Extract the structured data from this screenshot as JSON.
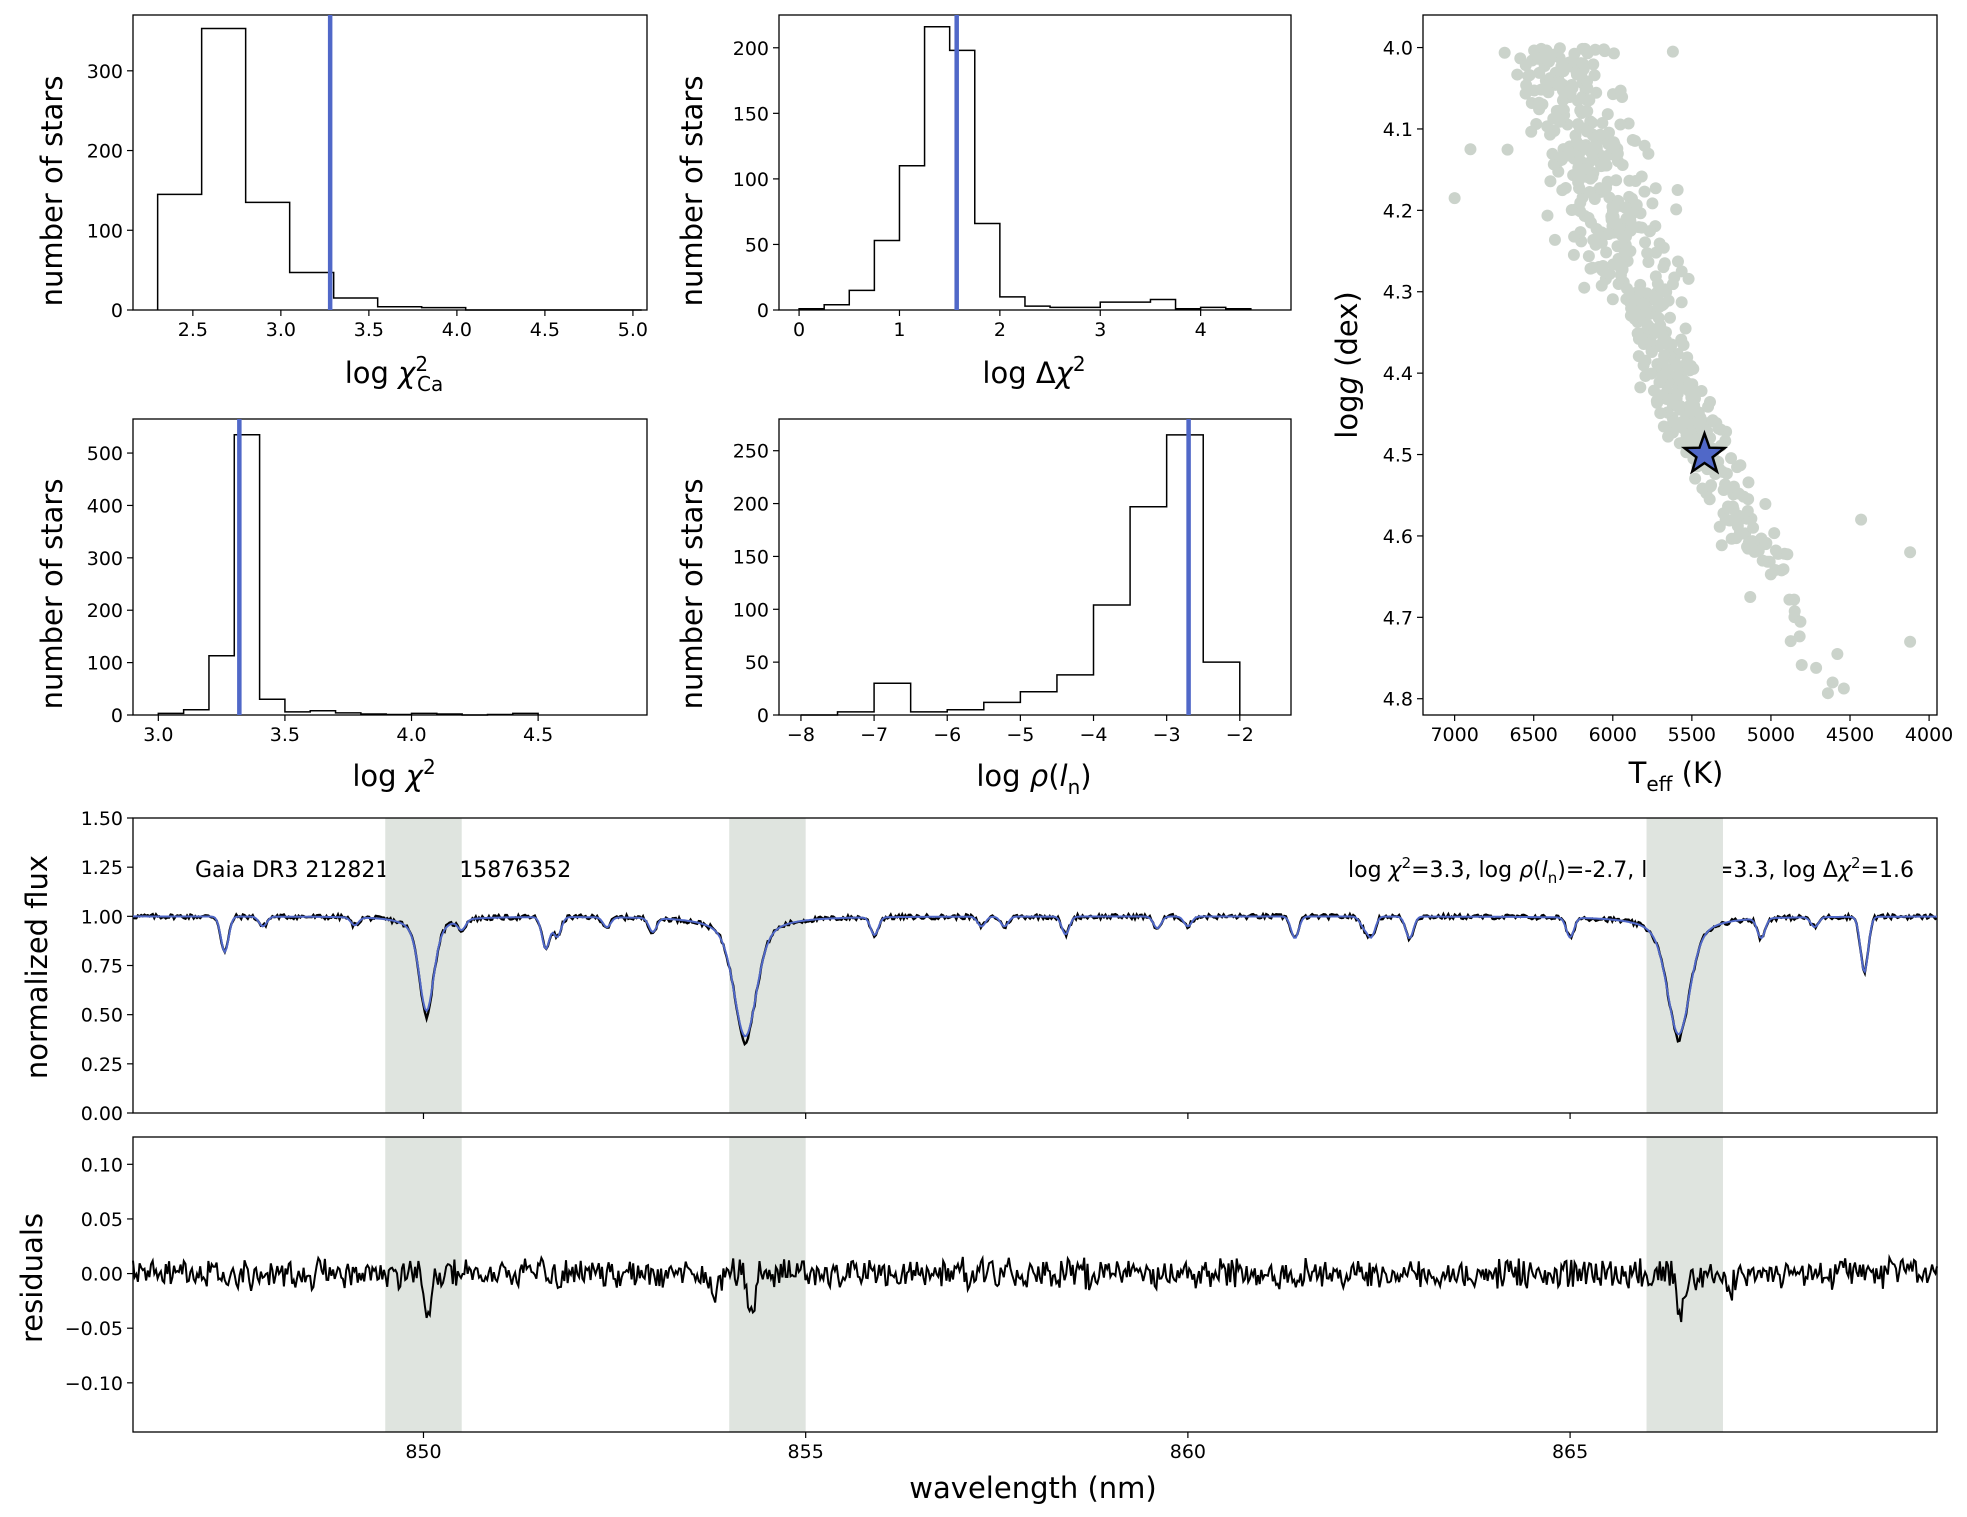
{
  "colors": {
    "accent": "#5068c8",
    "scatter": "#cbd3cb",
    "band": "#dfe4df",
    "hist": "#000000",
    "spectrum": "#000000",
    "model": "#5068c8"
  },
  "chart_data": [
    {
      "id": "hist_chi2ca",
      "type": "histogram",
      "xlabel": "log χ²_Ca",
      "xlabel_main": "log ",
      "xlabel_sym": "χ",
      "xlabel_sup": "2",
      "xlabel_sub": "Ca",
      "ylabel": "number of stars",
      "xlim": [
        2.16,
        5.08
      ],
      "ylim": [
        0,
        370
      ],
      "xticks": [
        2.5,
        3.0,
        3.5,
        4.0,
        4.5,
        5.0
      ],
      "xtick_labels": [
        "2.5",
        "3.0",
        "3.5",
        "4.0",
        "4.5",
        "5.0"
      ],
      "yticks": [
        0,
        100,
        200,
        300
      ],
      "ytick_labels": [
        "0",
        "100",
        "200",
        "300"
      ],
      "bin_edges": [
        2.3,
        2.55,
        2.8,
        3.05,
        3.3,
        3.55,
        3.8,
        4.05,
        4.3,
        4.55,
        4.8,
        5.05
      ],
      "counts": [
        145,
        353,
        135,
        47,
        15,
        4,
        3,
        0,
        0,
        0,
        0
      ],
      "marker_value": 3.28
    },
    {
      "id": "hist_dchi2",
      "type": "histogram",
      "xlabel": "log Δχ²",
      "xlabel_main": "log Δ",
      "xlabel_sym": "χ",
      "xlabel_sup": "2",
      "xlabel_sub": "",
      "ylabel": "number of stars",
      "xlim": [
        -0.2,
        4.9
      ],
      "ylim": [
        0,
        225
      ],
      "xticks": [
        0,
        1,
        2,
        3,
        4
      ],
      "xtick_labels": [
        "0",
        "1",
        "2",
        "3",
        "4"
      ],
      "yticks": [
        0,
        50,
        100,
        150,
        200
      ],
      "ytick_labels": [
        "0",
        "50",
        "100",
        "150",
        "200"
      ],
      "bin_edges": [
        0,
        0.25,
        0.5,
        0.75,
        1.0,
        1.25,
        1.5,
        1.75,
        2.0,
        2.25,
        2.5,
        2.75,
        3.0,
        3.25,
        3.5,
        3.75,
        4.0,
        4.25,
        4.5
      ],
      "counts": [
        1,
        4,
        15,
        53,
        110,
        216,
        198,
        66,
        10,
        3,
        2,
        2,
        6,
        6,
        8,
        1,
        2,
        1
      ],
      "marker_value": 1.57
    },
    {
      "id": "hist_chi2",
      "type": "histogram",
      "xlabel": "log χ²",
      "xlabel_main": "log ",
      "xlabel_sym": "χ",
      "xlabel_sup": "2",
      "xlabel_sub": "",
      "ylabel": "number of stars",
      "xlim": [
        2.9,
        4.93
      ],
      "ylim": [
        0,
        565
      ],
      "xticks": [
        3.0,
        3.5,
        4.0,
        4.5
      ],
      "xtick_labels": [
        "3.0",
        "3.5",
        "4.0",
        "4.5"
      ],
      "yticks": [
        0,
        100,
        200,
        300,
        400,
        500
      ],
      "ytick_labels": [
        "0",
        "100",
        "200",
        "300",
        "400",
        "500"
      ],
      "bin_edges": [
        3.0,
        3.1,
        3.2,
        3.3,
        3.4,
        3.5,
        3.6,
        3.7,
        3.8,
        3.9,
        4.0,
        4.1,
        4.2,
        4.3,
        4.4,
        4.5
      ],
      "counts": [
        3,
        10,
        113,
        535,
        30,
        6,
        8,
        4,
        2,
        1,
        3,
        2,
        0,
        1,
        3
      ],
      "marker_value": 3.32
    },
    {
      "id": "hist_rho",
      "type": "histogram",
      "xlabel": "log ρ(l_n)",
      "xlabel_main": "log ",
      "xlabel_sym": "ρ",
      "xlabel_sup": "",
      "xlabel_sub": "",
      "ylabel": "number of stars",
      "xlim": [
        -8.3,
        -1.3
      ],
      "ylim": [
        0,
        280
      ],
      "xticks": [
        -8,
        -7,
        -6,
        -5,
        -4,
        -3,
        -2
      ],
      "xtick_labels": [
        "−8",
        "−7",
        "−6",
        "−5",
        "−4",
        "−3",
        "−2"
      ],
      "yticks": [
        0,
        50,
        100,
        150,
        200,
        250
      ],
      "ytick_labels": [
        "0",
        "50",
        "100",
        "150",
        "200",
        "250"
      ],
      "bin_edges": [
        -8.0,
        -7.5,
        -7.0,
        -6.5,
        -6.0,
        -5.5,
        -5.0,
        -4.5,
        -4.0,
        -3.5,
        -3.0,
        -2.5,
        -2.0
      ],
      "counts": [
        0,
        3,
        30,
        3,
        5,
        12,
        22,
        38,
        104,
        197,
        265,
        50
      ],
      "marker_value": -2.7
    },
    {
      "id": "kiel",
      "type": "scatter",
      "xlabel": "T_eff (K)",
      "ylabel": "log g (dex)",
      "xlim": [
        7200,
        3950
      ],
      "ylim": [
        4.82,
        3.96
      ],
      "xticks": [
        7000,
        6500,
        6000,
        5500,
        5000,
        4500,
        4000
      ],
      "xtick_labels": [
        "7000",
        "6500",
        "6000",
        "5500",
        "5000",
        "4500",
        "4000"
      ],
      "yticks": [
        4.0,
        4.1,
        4.2,
        4.3,
        4.4,
        4.5,
        4.6,
        4.7,
        4.8
      ],
      "ytick_labels": [
        "4.0",
        "4.1",
        "4.2",
        "4.3",
        "4.4",
        "4.5",
        "4.6",
        "4.7",
        "4.8"
      ],
      "n_points": 620,
      "marked_star": {
        "teff": 5420,
        "logg": 4.5
      }
    },
    {
      "id": "spectrum",
      "type": "line",
      "ylabel": "normalized flux",
      "xlim": [
        846.2,
        869.8
      ],
      "ylim": [
        0.0,
        1.5
      ],
      "xticks": [
        850,
        855,
        860,
        865
      ],
      "yticks": [
        0.0,
        0.25,
        0.5,
        0.75,
        1.0,
        1.25,
        1.5
      ],
      "ytick_labels": [
        "0.00",
        "0.25",
        "0.50",
        "0.75",
        "1.00",
        "1.25",
        "1.50"
      ],
      "bands": [
        [
          849.5,
          850.5
        ],
        [
          854.0,
          855.0
        ],
        [
          866.0,
          867.0
        ]
      ],
      "lines": [
        {
          "center": 847.4,
          "depth": 0.18,
          "width": 0.05
        },
        {
          "center": 847.9,
          "depth": 0.05,
          "width": 0.05
        },
        {
          "center": 849.1,
          "depth": 0.04,
          "width": 0.05
        },
        {
          "center": 850.04,
          "depth": 0.48,
          "width": 0.09
        },
        {
          "center": 850.5,
          "depth": 0.05,
          "width": 0.05
        },
        {
          "center": 851.6,
          "depth": 0.16,
          "width": 0.05
        },
        {
          "center": 851.75,
          "depth": 0.1,
          "width": 0.05
        },
        {
          "center": 852.4,
          "depth": 0.05,
          "width": 0.05
        },
        {
          "center": 853.0,
          "depth": 0.07,
          "width": 0.05
        },
        {
          "center": 854.21,
          "depth": 0.61,
          "width": 0.14
        },
        {
          "center": 855.9,
          "depth": 0.09,
          "width": 0.05
        },
        {
          "center": 857.3,
          "depth": 0.05,
          "width": 0.05
        },
        {
          "center": 857.6,
          "depth": 0.05,
          "width": 0.05
        },
        {
          "center": 858.4,
          "depth": 0.09,
          "width": 0.05
        },
        {
          "center": 859.6,
          "depth": 0.06,
          "width": 0.05
        },
        {
          "center": 860.0,
          "depth": 0.05,
          "width": 0.05
        },
        {
          "center": 861.4,
          "depth": 0.11,
          "width": 0.05
        },
        {
          "center": 862.3,
          "depth": 0.05,
          "width": 0.05
        },
        {
          "center": 862.4,
          "depth": 0.1,
          "width": 0.05
        },
        {
          "center": 862.9,
          "depth": 0.11,
          "width": 0.05
        },
        {
          "center": 865.0,
          "depth": 0.1,
          "width": 0.05
        },
        {
          "center": 866.42,
          "depth": 0.6,
          "width": 0.14
        },
        {
          "center": 867.5,
          "depth": 0.1,
          "width": 0.05
        },
        {
          "center": 868.2,
          "depth": 0.05,
          "width": 0.05
        },
        {
          "center": 868.85,
          "depth": 0.28,
          "width": 0.05
        }
      ],
      "star_label": "Gaia DR3 2128215909315876352",
      "summary": "log χ²=3.3, log ρ(l_n)=-2.7, log χ²_Ca=3.3, log Δχ²=1.6",
      "summary_parts": {
        "chi2_val": "=3.3, ",
        "rho_val": ")=-2.7, ",
        "chica_val": "=3.3, ",
        "dchi2_val": "=1.6"
      }
    },
    {
      "id": "residuals",
      "type": "line",
      "ylabel": "residuals",
      "xlabel": "wavelength (nm)",
      "xlim": [
        846.2,
        869.8
      ],
      "ylim": [
        -0.145,
        0.125
      ],
      "xticks": [
        850,
        855,
        860,
        865
      ],
      "xtick_labels": [
        "850",
        "855",
        "860",
        "865"
      ],
      "yticks": [
        -0.1,
        -0.05,
        0.0,
        0.05,
        0.1
      ],
      "ytick_labels": [
        "−0.10",
        "−0.05",
        "0.00",
        "0.05",
        "0.10"
      ],
      "bands": [
        [
          849.5,
          850.5
        ],
        [
          854.0,
          855.0
        ],
        [
          866.0,
          867.0
        ]
      ],
      "dips": [
        {
          "center": 850.04,
          "depth": 0.04
        },
        {
          "center": 853.8,
          "depth": 0.02
        },
        {
          "center": 854.3,
          "depth": 0.045
        },
        {
          "center": 866.45,
          "depth": 0.04
        },
        {
          "center": 867.1,
          "depth": 0.015
        }
      ]
    }
  ]
}
